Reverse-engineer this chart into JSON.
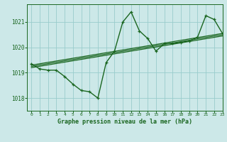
{
  "title": "Graphe pression niveau de la mer (hPa)",
  "bg_color": "#cce8e8",
  "grid_color": "#99cccc",
  "line_color": "#1a6620",
  "xlim": [
    -0.5,
    23
  ],
  "ylim": [
    1017.5,
    1021.7
  ],
  "yticks": [
    1018,
    1019,
    1020,
    1021
  ],
  "xticks": [
    0,
    1,
    2,
    3,
    4,
    5,
    6,
    7,
    8,
    9,
    10,
    11,
    12,
    13,
    14,
    15,
    16,
    17,
    18,
    19,
    20,
    21,
    22,
    23
  ],
  "main_series": {
    "x": [
      0,
      1,
      2,
      3,
      4,
      5,
      6,
      7,
      8,
      9,
      10,
      11,
      12,
      13,
      14,
      15,
      16,
      17,
      18,
      19,
      20,
      21,
      22,
      23
    ],
    "y": [
      1019.35,
      1019.15,
      1019.1,
      1019.1,
      1018.85,
      1018.55,
      1018.3,
      1018.25,
      1018.0,
      1019.4,
      1019.85,
      1021.0,
      1021.4,
      1020.65,
      1020.35,
      1019.85,
      1020.15,
      1020.15,
      1020.2,
      1020.25,
      1020.4,
      1021.25,
      1021.1,
      1020.55
    ]
  },
  "trend_lines": [
    {
      "x": [
        0,
        23
      ],
      "y": [
        1019.2,
        1020.45
      ]
    },
    {
      "x": [
        0,
        23
      ],
      "y": [
        1019.25,
        1020.5
      ]
    },
    {
      "x": [
        0,
        23
      ],
      "y": [
        1019.3,
        1020.55
      ]
    }
  ]
}
